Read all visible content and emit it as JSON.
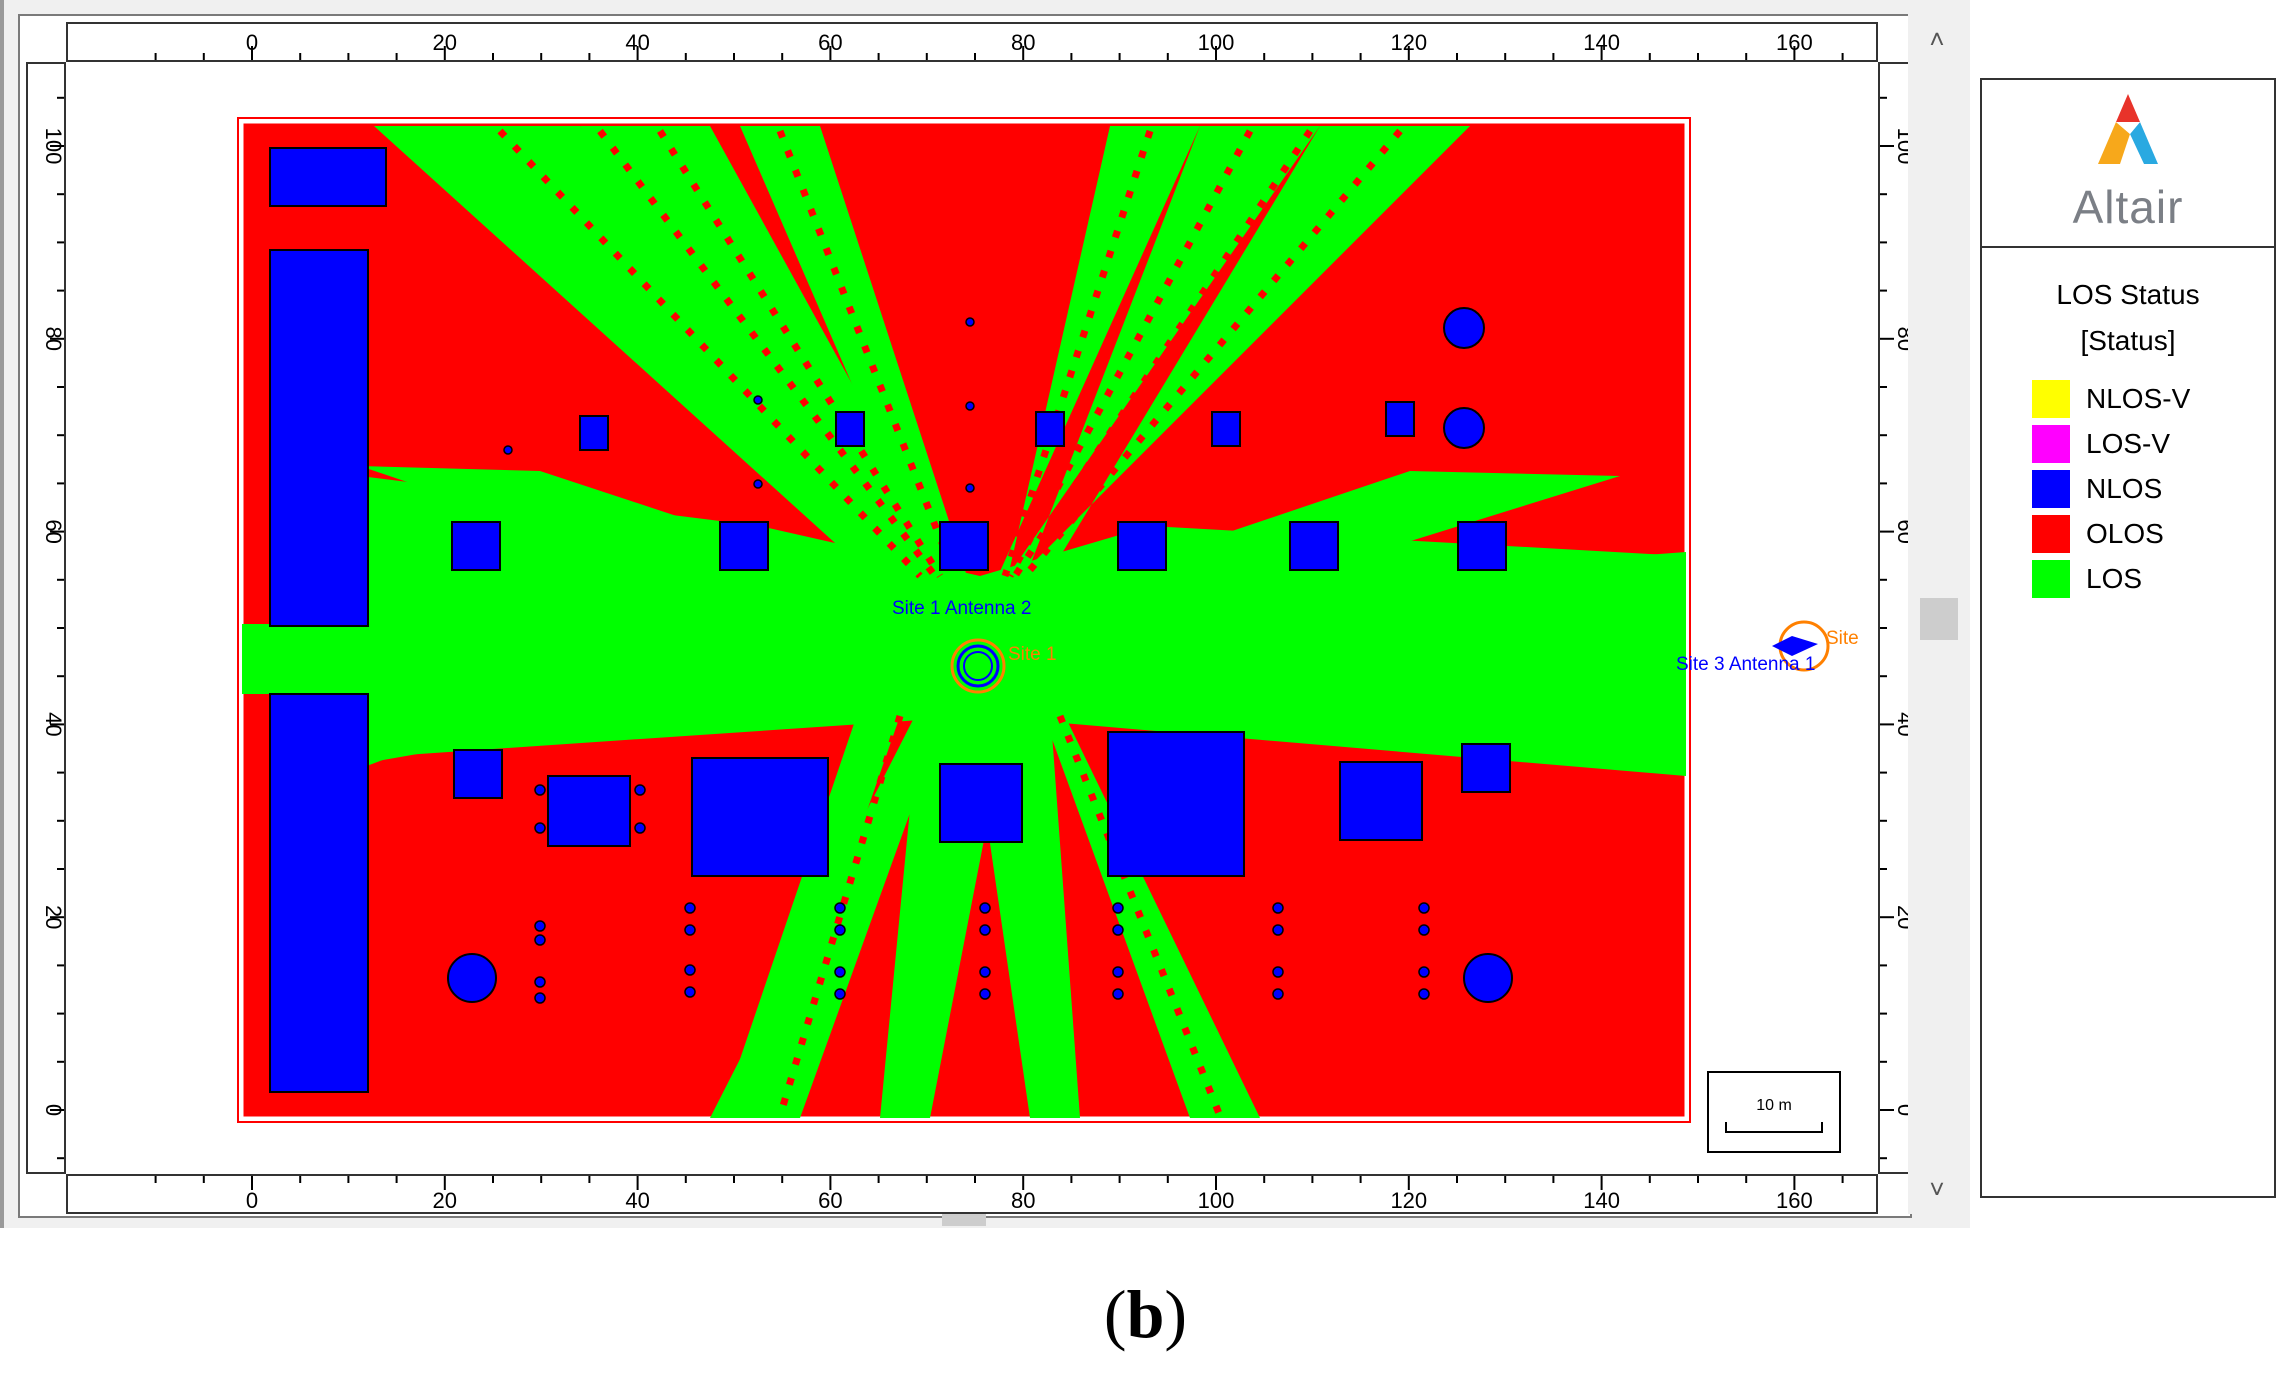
{
  "view": {
    "x_ticks": [
      "0",
      "20",
      "40",
      "60",
      "80",
      "100",
      "120",
      "140",
      "160"
    ],
    "y_ticks": [
      "0",
      "20",
      "40",
      "60",
      "80",
      "100"
    ],
    "scale_bar_label": "10 m",
    "sites": [
      {
        "label": "Site  1 Antenna 2",
        "color": "#0000ff"
      },
      {
        "label": "Site  1",
        "color": "#ff8000"
      },
      {
        "label": "Site  3 Antenna 1",
        "color": "#0000ff"
      },
      {
        "label": "Site",
        "color": "#ff8000"
      }
    ]
  },
  "scrollbar": {
    "up_icon": "chevron-up-icon",
    "down_icon": "chevron-down-icon"
  },
  "legend": {
    "logo_text": "Altair",
    "title_line1": "LOS Status",
    "title_line2": "[Status]",
    "items": [
      {
        "label": "NLOS-V",
        "color": "#ffff00"
      },
      {
        "label": "LOS-V",
        "color": "#ff00ff"
      },
      {
        "label": "NLOS",
        "color": "#0000ff"
      },
      {
        "label": "OLOS",
        "color": "#ff0000"
      },
      {
        "label": "LOS",
        "color": "#00ff00"
      }
    ]
  },
  "figure_label": {
    "open": "(",
    "letter": "b",
    "close": ")"
  },
  "colors": {
    "los": "#00ff00",
    "olos": "#ff0000",
    "nlos": "#0000ff",
    "site_marker": "#ff8000"
  }
}
